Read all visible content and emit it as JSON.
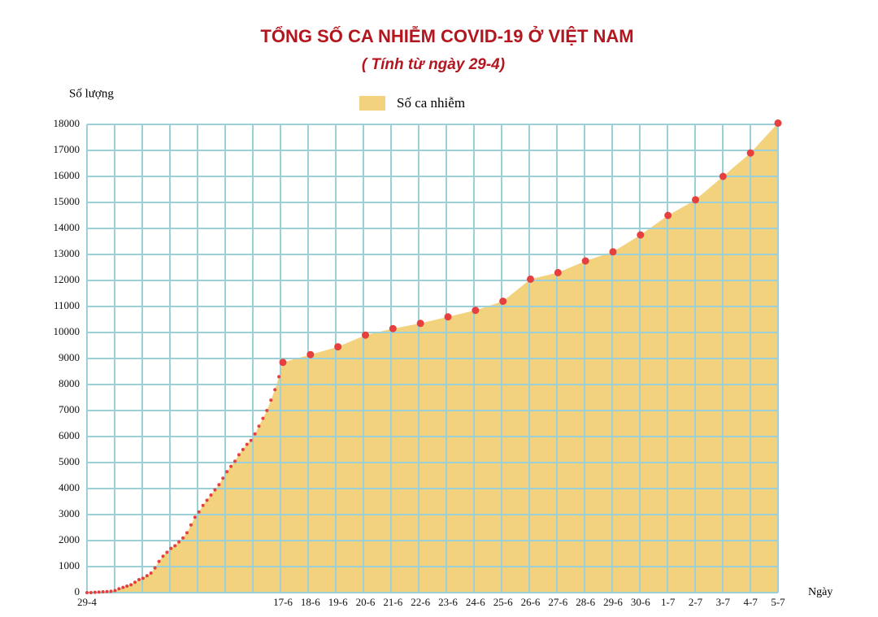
{
  "chart_data": {
    "type": "area",
    "title": "TỔNG SỐ CA NHIỄM COVID-19 Ở VIỆT NAM",
    "subtitle": "( Tính từ ngày 29-4)",
    "ylabel": "Số lượng",
    "xlabel": "Ngày",
    "categories": [
      "29-4",
      null,
      null,
      null,
      null,
      null,
      null,
      null,
      null,
      null,
      null,
      null,
      null,
      null,
      null,
      null,
      null,
      null,
      null,
      null,
      null,
      null,
      null,
      null,
      null,
      null,
      null,
      null,
      null,
      null,
      null,
      null,
      null,
      null,
      null,
      null,
      null,
      null,
      null,
      null,
      null,
      null,
      null,
      null,
      null,
      null,
      null,
      null,
      null,
      "17-6",
      "18-6",
      "19-6",
      "20-6",
      "21-6",
      "22-6",
      "23-6",
      "24-6",
      "25-6",
      "26-6",
      "27-6",
      "28-6",
      "29-6",
      "30-6",
      "1-7",
      "2-7",
      "3-7",
      "4-7",
      "5-7"
    ],
    "series": [
      {
        "name": "Số ca nhiễm",
        "color": "#f2d27c",
        "marker_color": "#e5403f",
        "values": [
          0,
          0,
          10,
          20,
          30,
          40,
          50,
          80,
          150,
          200,
          250,
          300,
          400,
          500,
          550,
          650,
          750,
          950,
          1200,
          1400,
          1550,
          1700,
          1800,
          1950,
          2100,
          2300,
          2600,
          2900,
          3100,
          3350,
          3550,
          3750,
          3950,
          4150,
          4400,
          4650,
          4850,
          5050,
          5300,
          5500,
          5700,
          5850,
          6100,
          6400,
          6700,
          7000,
          7400,
          7800,
          8300,
          8850,
          9150,
          9450,
          9900,
          10150,
          10350,
          10600,
          10850,
          11200,
          12050,
          12300,
          12750,
          13100,
          13750,
          14500,
          15100,
          16000,
          16900,
          18050
        ]
      }
    ],
    "ylim": [
      0,
      18000
    ],
    "yticks": [
      0,
      1000,
      2000,
      3000,
      4000,
      5000,
      6000,
      7000,
      8000,
      9000,
      10000,
      11000,
      12000,
      13000,
      14000,
      15000,
      16000,
      17000,
      18000
    ],
    "grid": true,
    "legend": "top",
    "title_color": "#b3161e",
    "grid_color": "#9ccfd6"
  }
}
